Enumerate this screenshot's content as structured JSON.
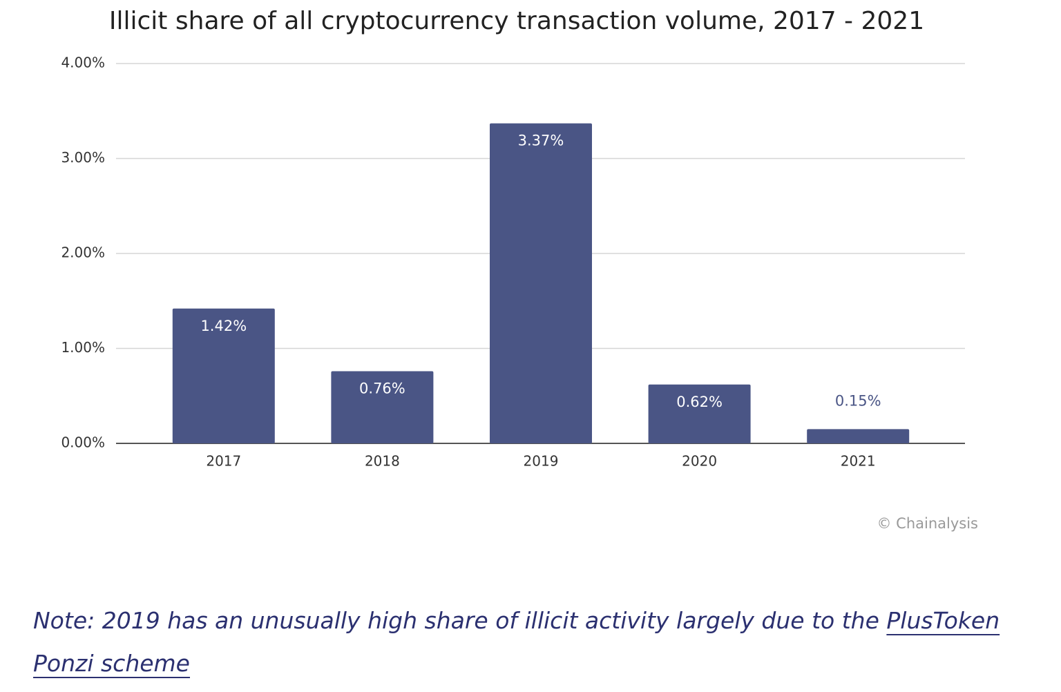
{
  "chart_data": {
    "type": "bar",
    "title": "Illicit share of all cryptocurrency transaction volume, 2017 - 2021",
    "categories": [
      "2017",
      "2018",
      "2019",
      "2020",
      "2021"
    ],
    "values": [
      1.42,
      0.76,
      3.37,
      0.62,
      0.15
    ],
    "value_labels": [
      "1.42%",
      "0.76%",
      "3.37%",
      "0.62%",
      "0.15%"
    ],
    "color": "#4a5585",
    "ylim": [
      0,
      4
    ],
    "yticks": [
      {
        "value": 0,
        "label": "0.00%"
      },
      {
        "value": 1,
        "label": "1.00%"
      },
      {
        "value": 2,
        "label": "2.00%"
      },
      {
        "value": 3,
        "label": "3.00%"
      },
      {
        "value": 4,
        "label": "4.00%"
      }
    ],
    "grid": true,
    "source": "© Chainalysis"
  },
  "note": {
    "text": "Note: 2019 has an unusually high share of illicit activity largely due to the",
    "link": "PlusToken Ponzi scheme"
  }
}
